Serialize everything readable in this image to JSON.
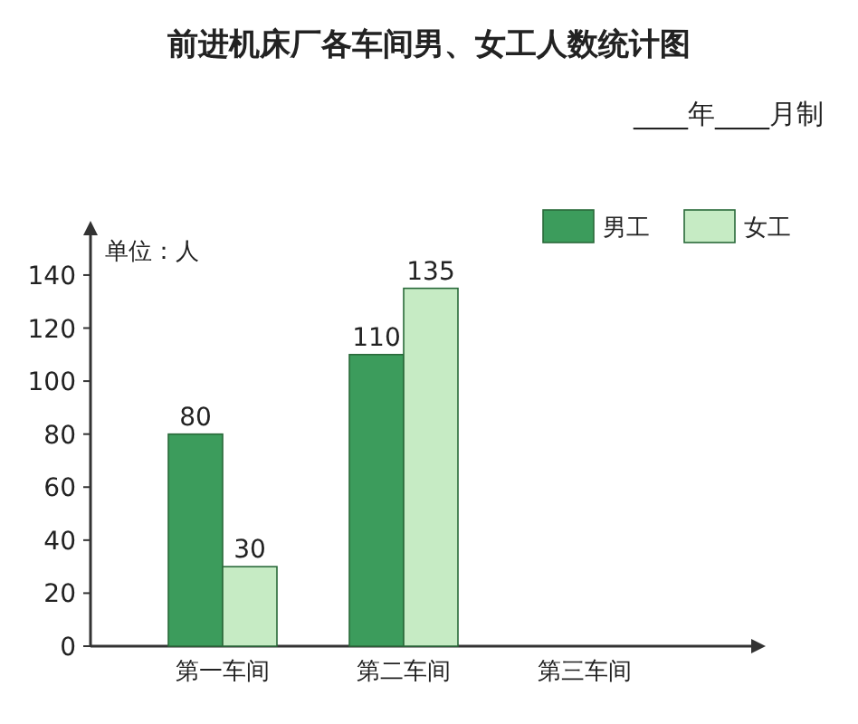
{
  "chart_data": {
    "type": "bar",
    "title": "前进机床厂各车间男、女工人数统计图",
    "subtitle": "____年____月制",
    "ylabel": "单位：人",
    "categories": [
      "第一车间",
      "第二车间",
      "第三车间"
    ],
    "series": [
      {
        "name": "男工",
        "color": "#3c9c5c",
        "values": [
          80,
          110,
          null
        ]
      },
      {
        "name": "女工",
        "color": "#c6ebc4",
        "values": [
          30,
          135,
          null
        ]
      }
    ],
    "ylim": [
      0,
      155
    ],
    "yticks": [
      0,
      20,
      40,
      60,
      80,
      100,
      120,
      140
    ],
    "data_labels": true,
    "legend": "top right",
    "grid": false
  }
}
